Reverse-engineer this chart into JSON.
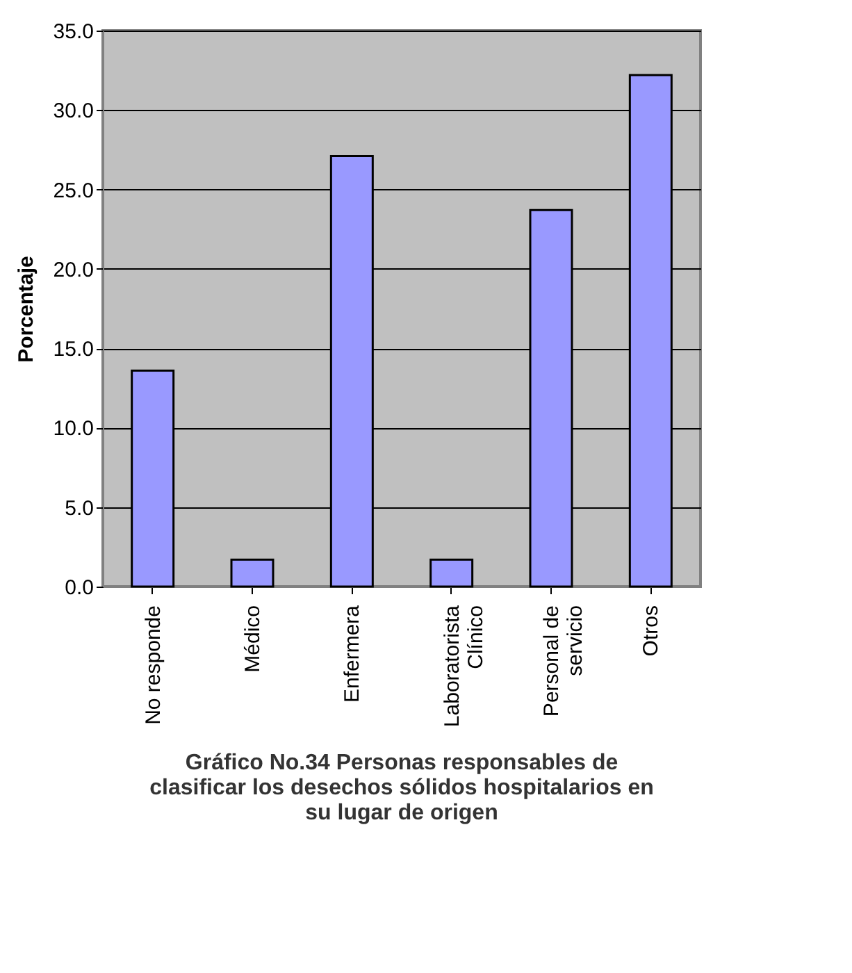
{
  "chart_data": {
    "type": "bar",
    "title": "Gráfico No.34  Personas responsables de\nclasificar los desechos sólidos hospitalarios en\nsu lugar de origen",
    "ylabel": "Porcentaje",
    "categories": [
      "No responde",
      "Médico",
      "Enfermera",
      "Laboratorista\nClínico",
      "Personal de\nservicio",
      "Otros"
    ],
    "values": [
      13.6,
      1.7,
      27.1,
      1.7,
      23.7,
      32.2
    ],
    "color": "#9999ff",
    "ylim": [
      0,
      35
    ],
    "yticks": [
      {
        "value": 0,
        "label": "0.0"
      },
      {
        "value": 5,
        "label": "5.0"
      },
      {
        "value": 10,
        "label": "10.0"
      },
      {
        "value": 15,
        "label": "15.0"
      },
      {
        "value": 20,
        "label": "20.0"
      },
      {
        "value": 25,
        "label": "25.0"
      },
      {
        "value": 30,
        "label": "30.0"
      },
      {
        "value": 35,
        "label": "35.0"
      }
    ],
    "grid": "y"
  }
}
